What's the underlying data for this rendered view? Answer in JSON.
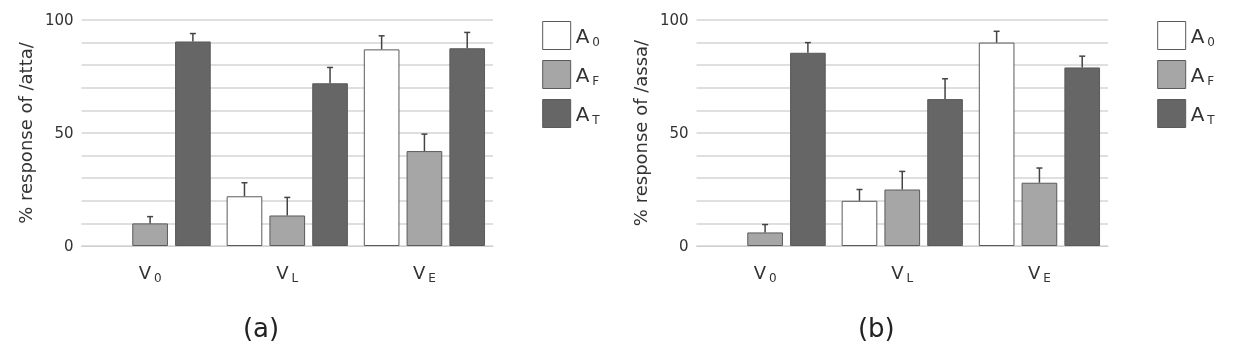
{
  "chart_data": [
    {
      "type": "bar",
      "title": "(a)",
      "ylabel": "% response of /atta/",
      "categories": [
        "V$_{0}$",
        "V$_{L}$",
        "V$_{E}$"
      ],
      "series": [
        {
          "name": "A$_{0}$",
          "color": "#ffffff",
          "values": [
            null,
            22,
            87
          ],
          "errors": [
            null,
            [
              22,
              28
            ],
            [
              87,
              93
            ]
          ]
        },
        {
          "name": "A$_{F}$",
          "color": "#a6a6a6",
          "values": [
            10,
            13.5,
            42
          ],
          "errors": [
            [
              10,
              13
            ],
            [
              13.5,
              21.5
            ],
            [
              42,
              49.5
            ]
          ]
        },
        {
          "name": "A$_{T}$",
          "color": "#666666",
          "values": [
            90.5,
            72,
            87.5
          ],
          "errors": [
            [
              90.5,
              94
            ],
            [
              72,
              79
            ],
            [
              87.5,
              94.5
            ]
          ]
        }
      ],
      "ylim": [
        0,
        100
      ],
      "yticks": [
        0,
        {
          "value": 10,
          "label": null
        },
        {
          "value": 20,
          "label": null
        },
        {
          "value": 30,
          "label": null
        },
        {
          "value": 40,
          "label": null
        },
        50,
        {
          "value": 60,
          "label": null
        },
        {
          "value": 70,
          "label": null
        },
        {
          "value": 80,
          "label": null
        },
        {
          "value": 90,
          "label": null
        },
        100
      ],
      "grid": "y",
      "legend": "top right"
    },
    {
      "type": "bar",
      "title": "(b)",
      "ylabel": "% response of /assa/",
      "categories": [
        "V$_{0}$",
        "V$_{L}$",
        "V$_{E}$"
      ],
      "series": [
        {
          "name": "A$_{0}$",
          "color": "#ffffff",
          "values": [
            null,
            20,
            90
          ],
          "errors": [
            null,
            [
              20,
              25
            ],
            [
              90,
              95
            ]
          ]
        },
        {
          "name": "A$_{F}$",
          "color": "#a6a6a6",
          "values": [
            6,
            25,
            28
          ],
          "errors": [
            [
              6,
              9.5
            ],
            [
              25,
              33
            ],
            [
              28,
              34.5
            ]
          ]
        },
        {
          "name": "A$_{T}$",
          "color": "#666666",
          "values": [
            85.5,
            65,
            79
          ],
          "errors": [
            [
              85.5,
              90
            ],
            [
              65,
              74
            ],
            [
              79,
              84
            ]
          ]
        }
      ],
      "ylim": [
        0,
        100
      ],
      "yticks": [
        0,
        {
          "value": 10,
          "label": null
        },
        {
          "value": 20,
          "label": null
        },
        {
          "value": 30,
          "label": null
        },
        {
          "value": 40,
          "label": null
        },
        50,
        {
          "value": 60,
          "label": null
        },
        {
          "value": 70,
          "label": null
        },
        {
          "value": 80,
          "label": null
        },
        {
          "value": 90,
          "label": null
        },
        100
      ],
      "grid": "y",
      "legend": "top right"
    }
  ]
}
